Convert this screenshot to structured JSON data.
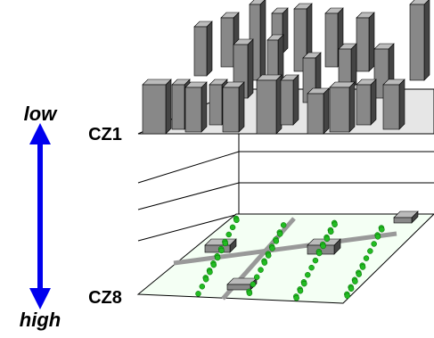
{
  "scale": {
    "top": "low",
    "bottom": "high"
  },
  "zones": {
    "top": "CZ1",
    "bottom": "CZ8"
  }
}
